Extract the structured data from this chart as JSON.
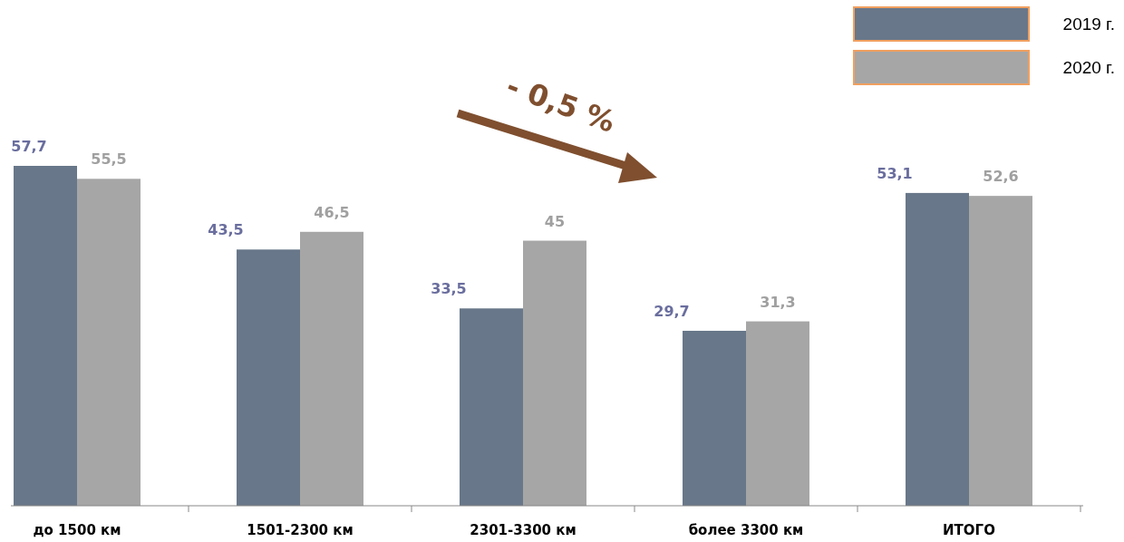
{
  "chart_data": {
    "type": "bar",
    "categories": [
      "до 1500 км",
      "1501-2300 км",
      "2301-3300 км",
      "более 3300 км",
      "ИТОГО"
    ],
    "series": [
      {
        "name": "2019 г.",
        "color": "#687789",
        "values": [
          57.7,
          43.5,
          33.5,
          29.7,
          53.1
        ],
        "value_labels": [
          "57,7",
          "43,5",
          "33,5",
          "29,7",
          "53,1"
        ]
      },
      {
        "name": "2020 г.",
        "color": "#a6a6a6",
        "values": [
          55.5,
          46.5,
          45,
          31.3,
          52.6
        ],
        "value_labels": [
          "55,5",
          "46,5",
          "45",
          "31,3",
          "52,6"
        ]
      }
    ],
    "legend": "top right",
    "annotations": [
      "- 0,5 %"
    ]
  }
}
